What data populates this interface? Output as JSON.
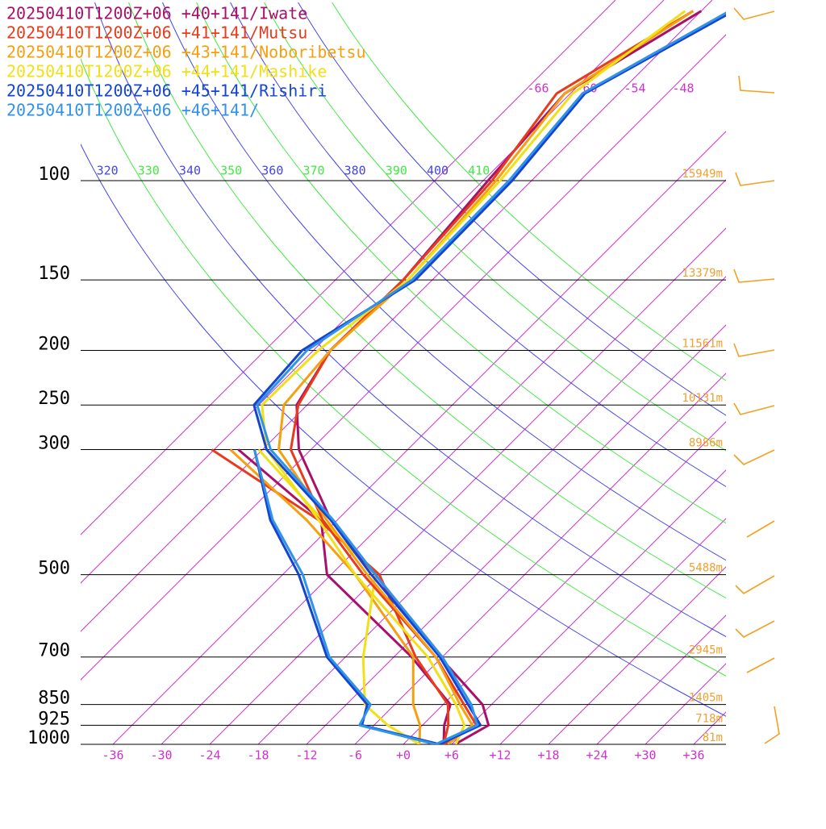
{
  "chart_data": {
    "type": "skewt",
    "y_scale": "log",
    "levels": [
      1000,
      925,
      850,
      700,
      500,
      400,
      300,
      250,
      200,
      150,
      100,
      70,
      50
    ],
    "ylim": [
      1000,
      47.8
    ],
    "yticks": [
      100,
      150,
      200,
      250,
      300,
      500,
      700,
      850,
      925,
      1000
    ],
    "height_labels": [
      "15949m",
      "13379m",
      "11561m",
      "10131m",
      "8986m",
      "5488m",
      "2945m",
      "1405m",
      "718m",
      "81m"
    ],
    "xlim": [
      -40,
      40
    ],
    "xticks": [
      -36,
      -30,
      -24,
      -18,
      -12,
      -6,
      {
        "value": 0,
        "label": "+0"
      },
      {
        "value": 6,
        "label": "+6"
      },
      {
        "value": 12,
        "label": "+12"
      },
      {
        "value": 18,
        "label": "+18"
      },
      {
        "value": 24,
        "label": "+24"
      },
      {
        "value": 30,
        "label": "+30"
      },
      {
        "value": 36,
        "label": "+36"
      }
    ],
    "isotherm_labels": [
      -66,
      -60,
      -54,
      -48
    ],
    "isotherm_color": "#d030d0",
    "isentrope_labels": [
      320,
      330,
      340,
      350,
      360,
      370,
      380,
      390,
      400,
      410
    ],
    "isentrope_colors": [
      "#4444e8",
      "#44e844"
    ],
    "height_label_color": "#f0a030",
    "series": [
      {
        "name": "20250410T1200Z+06 +40+141/Iwate",
        "color": "#a8106a",
        "temperature": [
          6.4,
          8.2,
          4.9,
          -6.3,
          -24.5,
          -36.8,
          -49.5,
          -55.3,
          -57.9,
          -57.6,
          -59.4,
          -60.7,
          -54
        ],
        "dewpoint": [
          5,
          2.7,
          0.9,
          -9.8,
          -30.5,
          -38,
          -57,
          null,
          null,
          null,
          null,
          null,
          null
        ]
      },
      {
        "name": "20250410T1200Z+06 +41+141/Mutsu",
        "color": "#e83a1c",
        "temperature": [
          5.0,
          6.7,
          2.6,
          -6.8,
          -26,
          -37.8,
          -50.5,
          -55.1,
          -57.9,
          -57.6,
          -58.9,
          -61.7,
          -55
        ],
        "dewpoint": [
          5,
          3.2,
          0.6,
          -9.3,
          -24,
          -38.3,
          -60.3,
          null,
          null,
          null,
          null,
          null,
          null
        ]
      },
      {
        "name": "20250410T1200Z+06 +43+141/Noboribetsu",
        "color": "#f5a010",
        "temperature": [
          5.5,
          6.2,
          2.1,
          -6.8,
          -25.5,
          -37.3,
          -52,
          -56.9,
          -57.9,
          -57,
          -58.4,
          -60.7,
          -55
        ],
        "dewpoint": [
          2,
          -0.3,
          -3.7,
          -9.6,
          -27,
          -39.8,
          -58,
          null,
          null,
          null,
          null,
          null,
          null
        ]
      },
      {
        "name": "20250410T1200Z+06 +44+141/Mashike",
        "color": "#f0e018",
        "temperature": [
          6.5,
          5.2,
          1.6,
          -7.8,
          -27,
          -38.3,
          -53.5,
          -59.6,
          -59.4,
          -57,
          -57.9,
          -59.7,
          -56
        ],
        "dewpoint": [
          2,
          -4.3,
          -9.7,
          -15.8,
          -24.5,
          -37.8,
          -54.5,
          null,
          null,
          null,
          null,
          null,
          null
        ]
      },
      {
        "name": "20250410T1200Z+06 +45+141/Rishiri",
        "color": "#1444d0",
        "temperature": [
          4.5,
          7.2,
          3.1,
          -6.3,
          -25,
          -36.8,
          -53.5,
          -60.6,
          -61.4,
          -56.1,
          -56.4,
          -58.2,
          -50
        ],
        "dewpoint": [
          4.5,
          -7.5,
          -9.4,
          -20.3,
          -34,
          -44.3,
          -55,
          null,
          null,
          null,
          null,
          null,
          null
        ]
      },
      {
        "name": "20250410T1200Z+06 +46+141/",
        "color": "#3092e8",
        "temperature": [
          4.0,
          6.8,
          3.5,
          -6.0,
          -24.5,
          -36.5,
          -53,
          -60.2,
          -60.8,
          -56.5,
          -56.8,
          -58.5,
          -50.5
        ],
        "dewpoint": [
          4.0,
          -7.8,
          -9.0,
          -20.0,
          -33.5,
          -44,
          -55,
          null,
          null,
          null,
          null,
          null,
          null
        ]
      }
    ]
  }
}
